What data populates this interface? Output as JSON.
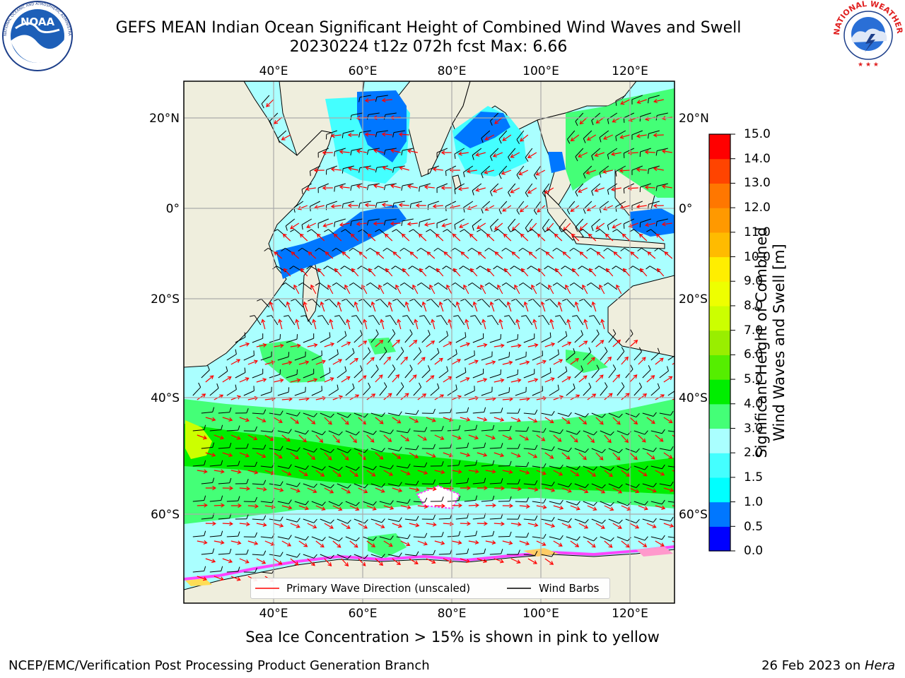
{
  "header": {
    "title_line1": "GEFS MEAN Indian Ocean Significant Height of Combined Wind Waves and Swell",
    "title_line2": "20230224 t12z 072h fcst   Max: 6.66",
    "logo_left": "NOAA",
    "logo_left_ring": "NATIONAL OCEANIC AND ATMOSPHERIC ADMINISTRATION · U.S. DEPARTMENT OF COMMERCE",
    "logo_right_ring": "NATIONAL WEATHER SERVICE"
  },
  "map": {
    "lon_labels_top": [
      "40°E",
      "60°E",
      "80°E",
      "100°E",
      "120°E"
    ],
    "lon_labels_bottom": [
      "40°E",
      "60°E",
      "80°E",
      "100°E",
      "120°E"
    ],
    "lat_labels_left": [
      "20°N",
      "0°",
      "20°S",
      "40°S",
      "60°S"
    ],
    "lat_labels_right": [
      "20°N",
      "0°",
      "20°S",
      "40°S",
      "60°S"
    ],
    "colors": {
      "land": "#efeedd",
      "ocean_low": "#aaffff",
      "grid": "#aaaaaa",
      "wave_direction": "#ff0000",
      "wind_barb": "#000000"
    }
  },
  "colorbar": {
    "title_line1": "Significant Height of Combined",
    "title_line2": "Wind Waves and Swell [m]",
    "ticks": [
      "15.0",
      "14.0",
      "13.0",
      "12.0",
      "11.0",
      "10.0",
      "9.0",
      "8.0",
      "7.0",
      "6.0",
      "5.0",
      "4.0",
      "3.0",
      "2.0",
      "1.5",
      "1.0",
      "0.5",
      "0.0"
    ],
    "colors_bottom_to_top": [
      "#0000ff",
      "#0077ff",
      "#00ffff",
      "#44ffff",
      "#aaffff",
      "#44ff77",
      "#00ee00",
      "#55ee00",
      "#99ee00",
      "#ccff00",
      "#eeff00",
      "#ffee00",
      "#ffbb00",
      "#ff9900",
      "#ff7700",
      "#ff4400",
      "#ff0000"
    ]
  },
  "legend": {
    "primary_wave": "Primary Wave Direction (unscaled)",
    "wind_barbs": "Wind Barbs"
  },
  "note": "Sea Ice Concentration > 15% is shown in pink to yellow",
  "footer": {
    "left": "NCEP/EMC/Verification Post Processing Product Generation Branch",
    "right_date": "26 Feb 2023 on ",
    "right_host": "Hera"
  }
}
